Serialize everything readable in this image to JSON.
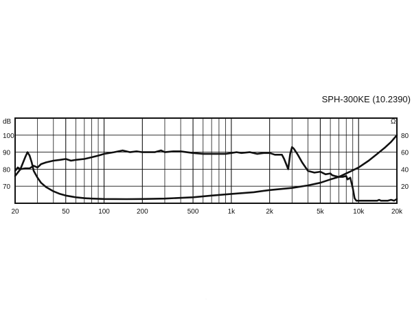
{
  "chart_data": {
    "type": "line",
    "title": "SPH-300KE (10.2390)",
    "x_scale": "log",
    "xlim": [
      20,
      20000
    ],
    "ylim_left": [
      60,
      110
    ],
    "ylim_right": [
      0,
      100
    ],
    "left_unit": "dB",
    "right_unit": "Ω",
    "grid": true,
    "x_ticks": [
      {
        "value": 20,
        "label": "20"
      },
      {
        "value": 50,
        "label": "50"
      },
      {
        "value": 100,
        "label": "100"
      },
      {
        "value": 200,
        "label": "200"
      },
      {
        "value": 500,
        "label": "500"
      },
      {
        "value": 1000,
        "label": "1k"
      },
      {
        "value": 2000,
        "label": "2k"
      },
      {
        "value": 5000,
        "label": "5k"
      },
      {
        "value": 10000,
        "label": "10k"
      },
      {
        "value": 20000,
        "label": "20k"
      }
    ],
    "y_ticks_left": [
      {
        "value": 70,
        "label": "70"
      },
      {
        "value": 80,
        "label": "80"
      },
      {
        "value": 90,
        "label": "90"
      },
      {
        "value": 100,
        "label": "100"
      }
    ],
    "y_ticks_right": [
      {
        "value": 20,
        "label": "20"
      },
      {
        "value": 40,
        "label": "40"
      },
      {
        "value": 60,
        "label": "60"
      },
      {
        "value": 80,
        "label": "80"
      }
    ],
    "series": [
      {
        "axis": "left",
        "x": [
          20,
          21,
          22,
          24,
          26,
          28,
          30,
          32,
          35,
          40,
          45,
          50,
          55,
          60,
          70,
          80,
          90,
          100,
          120,
          140,
          160,
          180,
          200,
          250,
          280,
          300,
          350,
          400,
          500,
          600,
          700,
          800,
          900,
          1000,
          1100,
          1200,
          1400,
          1600,
          1800,
          2000,
          2200,
          2500,
          2600,
          2700,
          2800,
          2900,
          3000,
          3100,
          3300,
          3600,
          4000,
          4500,
          5000,
          5500,
          6000,
          6200,
          6500,
          7000,
          7500,
          8000,
          8200,
          8600,
          9000,
          9300,
          9600,
          10000,
          11000,
          12000,
          13000,
          14000,
          14500,
          15000,
          16000,
          17000,
          18000,
          19000,
          20000
        ],
        "values": [
          79,
          81,
          80,
          80.5,
          80.5,
          82,
          81,
          83,
          84,
          85,
          85.5,
          86,
          85,
          85.5,
          86,
          87,
          88,
          89,
          90,
          91,
          90,
          90.5,
          90,
          90,
          91,
          90,
          90.5,
          90.5,
          89.5,
          89,
          89,
          89,
          89,
          89.5,
          90,
          89.5,
          90,
          89,
          89.5,
          89.5,
          88.5,
          88.5,
          86,
          83,
          80,
          89,
          93,
          92,
          89,
          84,
          79,
          78,
          78.5,
          77,
          77.5,
          76.5,
          76,
          75.5,
          75.5,
          76,
          74,
          75,
          69,
          63,
          61.5,
          61.5,
          61.5,
          61.5,
          61.5,
          61.5,
          62,
          61.5,
          61.5,
          61.5,
          62,
          61.5,
          62.5
        ]
      },
      {
        "axis": "right",
        "x": [
          20,
          22,
          24,
          25,
          26,
          27,
          28,
          30,
          32,
          35,
          40,
          45,
          50,
          60,
          70,
          80,
          100,
          150,
          200,
          300,
          500,
          700,
          1000,
          1500,
          2000,
          3000,
          4000,
          5000,
          6000,
          7000,
          8000,
          10000,
          12000,
          14000,
          16000,
          18000,
          20000
        ],
        "values": [
          32,
          40,
          54,
          60,
          56,
          48,
          38,
          30,
          24,
          19,
          14,
          11,
          9,
          7,
          6,
          5.5,
          5,
          4.8,
          5,
          5.5,
          7,
          9,
          11,
          13,
          15.5,
          18,
          21,
          24,
          28,
          31,
          35,
          42,
          50,
          58,
          65,
          72,
          80
        ]
      }
    ]
  }
}
